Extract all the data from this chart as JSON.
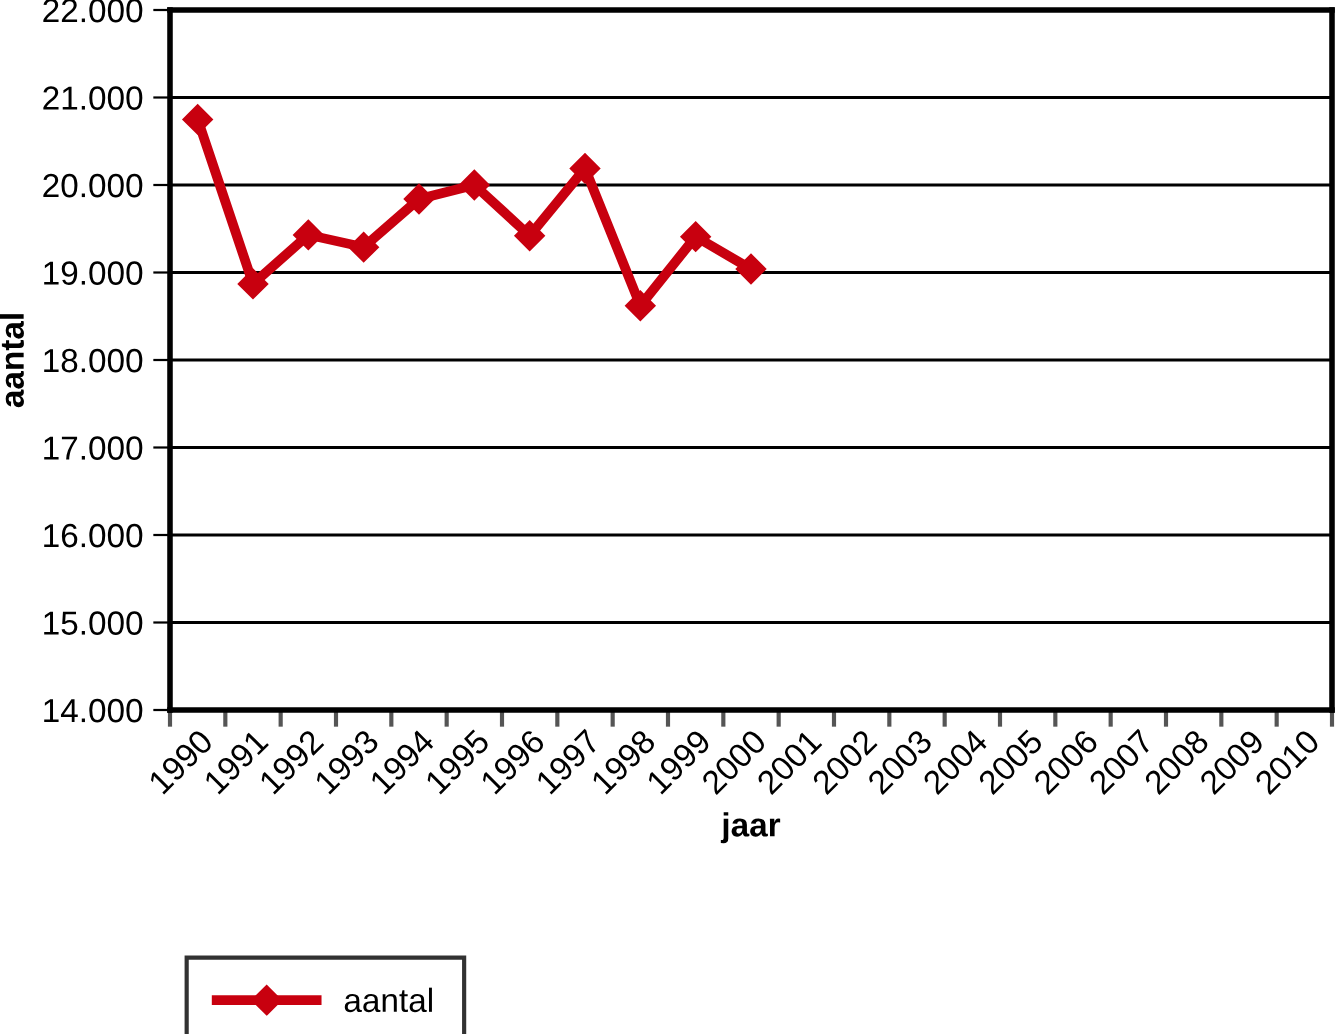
{
  "chart_data": {
    "type": "line",
    "xlabel": "jaar",
    "ylabel": "aantal",
    "categories": [
      "1990",
      "1991",
      "1992",
      "1993",
      "1994",
      "1995",
      "1996",
      "1997",
      "1998",
      "1999",
      "2000",
      "2001",
      "2002",
      "2003",
      "2004",
      "2005",
      "2006",
      "2007",
      "2008",
      "2009",
      "2010"
    ],
    "series": [
      {
        "name": "aantal",
        "color": "#c8000f",
        "values": [
          20750,
          18870,
          19430,
          19290,
          19840,
          20000,
          19420,
          20190,
          18620,
          19410,
          19040,
          null,
          null,
          null,
          null,
          null,
          null,
          null,
          null,
          null,
          null
        ]
      }
    ],
    "ylim": [
      14000,
      22000
    ],
    "yticks": [
      {
        "value": 14000,
        "label": "14.000"
      },
      {
        "value": 15000,
        "label": "15.000"
      },
      {
        "value": 16000,
        "label": "16.000"
      },
      {
        "value": 17000,
        "label": "17.000"
      },
      {
        "value": 18000,
        "label": "18.000"
      },
      {
        "value": 19000,
        "label": "19.000"
      },
      {
        "value": 20000,
        "label": "20.000"
      },
      {
        "value": 21000,
        "label": "21.000"
      },
      {
        "value": 22000,
        "label": "22.000"
      }
    ],
    "grid": "y",
    "legend": "bottom",
    "marker": "diamond",
    "line_style": "solid"
  }
}
